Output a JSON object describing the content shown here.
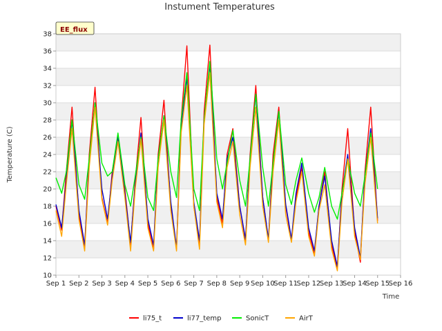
{
  "chart_data": {
    "type": "line",
    "title": "Instument Temperatures",
    "xlabel": "Time",
    "ylabel": "Temperature (C)",
    "badge": "EE_flux",
    "ylim": [
      10,
      38
    ],
    "xlim": [
      0,
      15
    ],
    "yticks": [
      10,
      12,
      14,
      16,
      18,
      20,
      22,
      24,
      26,
      28,
      30,
      32,
      34,
      36,
      38
    ],
    "xticks": [
      {
        "value": 0,
        "label": "Sep 1"
      },
      {
        "value": 1,
        "label": "Sep 2"
      },
      {
        "value": 2,
        "label": "Sep 3"
      },
      {
        "value": 3,
        "label": "Sep 4"
      },
      {
        "value": 4,
        "label": "Sep 5"
      },
      {
        "value": 5,
        "label": "Sep 6"
      },
      {
        "value": 6,
        "label": "Sep 7"
      },
      {
        "value": 7,
        "label": "Sep 8"
      },
      {
        "value": 8,
        "label": "Sep 9"
      },
      {
        "value": 9,
        "label": "Sep 10"
      },
      {
        "value": 10,
        "label": "Sep 11"
      },
      {
        "value": 11,
        "label": "Sep 12"
      },
      {
        "value": 12,
        "label": "Sep 13"
      },
      {
        "value": 13,
        "label": "Sep 14"
      },
      {
        "value": 14,
        "label": "Sep 15"
      },
      {
        "value": 15,
        "label": "Sep 16"
      }
    ],
    "grid": true,
    "legend_position": "bottom",
    "series": [
      {
        "name": "li75_t",
        "color": "#ff0000",
        "x": [
          0.0,
          0.25,
          0.45,
          0.7,
          1.0,
          1.25,
          1.45,
          1.7,
          2.0,
          2.25,
          2.45,
          2.7,
          3.0,
          3.25,
          3.45,
          3.7,
          4.0,
          4.25,
          4.45,
          4.7,
          5.0,
          5.25,
          5.45,
          5.7,
          6.0,
          6.25,
          6.45,
          6.7,
          7.0,
          7.25,
          7.45,
          7.7,
          8.0,
          8.25,
          8.45,
          8.7,
          9.0,
          9.25,
          9.45,
          9.7,
          10.0,
          10.25,
          10.45,
          10.7,
          11.0,
          11.25,
          11.45,
          11.7,
          12.0,
          12.25,
          12.45,
          12.7,
          13.0,
          13.25,
          13.45,
          13.7,
          14.0
        ],
        "y": [
          18.0,
          15.2,
          22.0,
          29.5,
          17.0,
          13.2,
          24.0,
          31.8,
          19.0,
          16.0,
          22.0,
          26.0,
          20.0,
          13.5,
          21.0,
          28.3,
          16.0,
          13.0,
          24.0,
          30.3,
          18.0,
          13.0,
          28.0,
          36.6,
          18.0,
          13.5,
          29.0,
          36.7,
          19.0,
          16.0,
          24.0,
          27.0,
          18.0,
          14.0,
          24.0,
          32.0,
          19.0,
          14.0,
          24.0,
          29.5,
          18.0,
          14.0,
          19.0,
          22.5,
          15.0,
          12.5,
          18.0,
          22.0,
          13.5,
          10.8,
          20.0,
          27.0,
          15.0,
          11.5,
          22.0,
          29.5,
          16.3
        ]
      },
      {
        "name": "li77_temp",
        "color": "#0000cc",
        "x": [
          0.0,
          0.25,
          0.45,
          0.7,
          1.0,
          1.25,
          1.45,
          1.7,
          2.0,
          2.25,
          2.45,
          2.7,
          3.0,
          3.25,
          3.45,
          3.7,
          4.0,
          4.25,
          4.45,
          4.7,
          5.0,
          5.25,
          5.45,
          5.7,
          6.0,
          6.25,
          6.45,
          6.7,
          7.0,
          7.25,
          7.45,
          7.7,
          8.0,
          8.25,
          8.45,
          8.7,
          9.0,
          9.25,
          9.45,
          9.7,
          10.0,
          10.25,
          10.45,
          10.7,
          11.0,
          11.25,
          11.45,
          11.7,
          12.0,
          12.25,
          12.45,
          12.7,
          13.0,
          13.25,
          13.45,
          13.7,
          14.0
        ],
        "y": [
          18.2,
          15.5,
          21.0,
          28.0,
          17.5,
          13.5,
          23.0,
          30.0,
          20.0,
          16.5,
          21.5,
          26.2,
          19.5,
          13.8,
          20.5,
          26.5,
          16.5,
          13.5,
          23.5,
          28.5,
          18.5,
          13.2,
          27.0,
          33.0,
          18.5,
          14.0,
          28.0,
          34.5,
          19.5,
          16.5,
          23.5,
          26.0,
          18.0,
          14.2,
          23.5,
          31.0,
          19.0,
          14.2,
          23.0,
          29.0,
          18.2,
          14.2,
          19.5,
          23.0,
          15.5,
          12.8,
          18.0,
          21.5,
          14.0,
          11.0,
          19.5,
          24.0,
          15.5,
          12.0,
          21.5,
          27.0,
          16.6
        ]
      },
      {
        "name": "SonicT",
        "color": "#00ee00",
        "x": [
          0.0,
          0.25,
          0.45,
          0.7,
          1.0,
          1.25,
          1.45,
          1.7,
          2.0,
          2.25,
          2.45,
          2.7,
          3.0,
          3.25,
          3.45,
          3.7,
          4.0,
          4.25,
          4.45,
          4.7,
          5.0,
          5.25,
          5.45,
          5.7,
          6.0,
          6.25,
          6.45,
          6.7,
          7.0,
          7.25,
          7.45,
          7.7,
          8.0,
          8.25,
          8.45,
          8.7,
          9.0,
          9.25,
          9.45,
          9.7,
          10.0,
          10.25,
          10.45,
          10.7,
          11.0,
          11.25,
          11.45,
          11.7,
          12.0,
          12.25,
          12.45,
          12.7,
          13.0,
          13.25,
          13.45,
          13.7,
          14.0
        ],
        "y": [
          21.3,
          19.5,
          22.0,
          28.0,
          20.5,
          18.8,
          23.5,
          30.0,
          23.0,
          21.5,
          22.0,
          26.5,
          20.5,
          18.0,
          21.5,
          26.0,
          19.0,
          17.5,
          23.5,
          28.5,
          22.0,
          19.0,
          28.0,
          33.5,
          20.0,
          17.5,
          28.0,
          34.8,
          23.5,
          20.0,
          23.0,
          26.8,
          21.0,
          18.0,
          23.5,
          31.0,
          22.5,
          18.0,
          23.0,
          29.0,
          20.5,
          18.2,
          21.0,
          23.6,
          19.5,
          17.3,
          19.0,
          22.5,
          18.0,
          16.5,
          19.5,
          23.5,
          19.5,
          18.0,
          21.5,
          26.5,
          20.0
        ]
      },
      {
        "name": "AirT",
        "color": "#ffa500",
        "x": [
          0.0,
          0.25,
          0.45,
          0.7,
          1.0,
          1.25,
          1.45,
          1.7,
          2.0,
          2.25,
          2.45,
          2.7,
          3.0,
          3.25,
          3.45,
          3.7,
          4.0,
          4.25,
          4.45,
          4.7,
          5.0,
          5.25,
          5.45,
          5.7,
          6.0,
          6.25,
          6.45,
          6.7,
          7.0,
          7.25,
          7.45,
          7.7,
          8.0,
          8.25,
          8.45,
          8.7,
          9.0,
          9.25,
          9.45,
          9.7,
          10.0,
          10.25,
          10.45,
          10.7,
          11.0,
          11.25,
          11.45,
          11.7,
          12.0,
          12.25,
          12.45,
          12.7,
          13.0,
          13.25,
          13.45,
          13.7,
          14.0
        ],
        "y": [
          17.5,
          14.5,
          20.5,
          27.0,
          16.5,
          12.8,
          22.5,
          29.5,
          18.8,
          15.8,
          21.0,
          25.5,
          19.0,
          12.8,
          20.0,
          25.8,
          15.5,
          12.8,
          22.5,
          28.0,
          17.5,
          12.8,
          26.5,
          32.0,
          18.0,
          13.0,
          27.5,
          33.5,
          18.5,
          15.5,
          22.5,
          25.5,
          17.0,
          13.5,
          22.5,
          29.5,
          18.0,
          13.8,
          22.0,
          28.0,
          17.0,
          13.8,
          18.5,
          22.0,
          14.5,
          12.2,
          17.5,
          20.5,
          13.0,
          10.5,
          18.5,
          23.5,
          14.5,
          11.8,
          20.5,
          26.0,
          16.0
        ]
      }
    ]
  }
}
